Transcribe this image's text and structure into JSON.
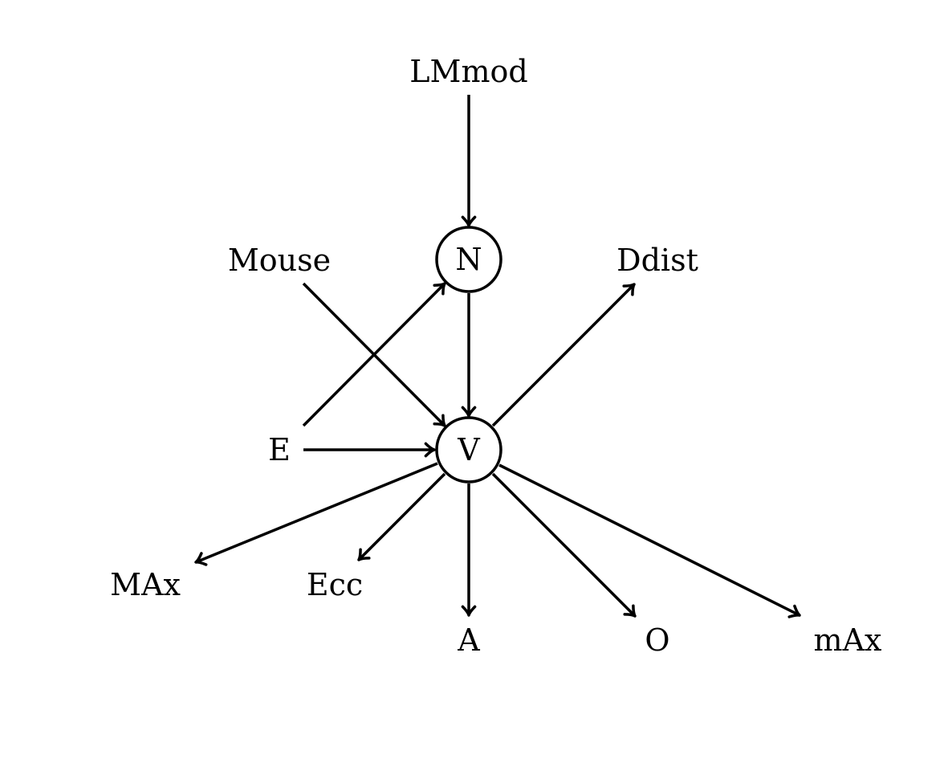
{
  "diagram": {
    "type": "directed-graph",
    "nodes": [
      {
        "id": "LMmod",
        "label": "LMmod",
        "circled": false
      },
      {
        "id": "N",
        "label": "N",
        "circled": true
      },
      {
        "id": "Mouse",
        "label": "Mouse",
        "circled": false
      },
      {
        "id": "Ddist",
        "label": "Ddist",
        "circled": false
      },
      {
        "id": "E",
        "label": "E",
        "circled": false
      },
      {
        "id": "V",
        "label": "V",
        "circled": true
      },
      {
        "id": "MAx",
        "label": "MAx",
        "circled": false
      },
      {
        "id": "Ecc",
        "label": "Ecc",
        "circled": false
      },
      {
        "id": "A",
        "label": "A",
        "circled": false
      },
      {
        "id": "O",
        "label": "O",
        "circled": false
      },
      {
        "id": "mAx",
        "label": "mAx",
        "circled": false
      }
    ],
    "edges": [
      {
        "from": "LMmod",
        "to": "N"
      },
      {
        "from": "N",
        "to": "V"
      },
      {
        "from": "Mouse",
        "to": "V"
      },
      {
        "from": "E",
        "to": "N"
      },
      {
        "from": "E",
        "to": "V"
      },
      {
        "from": "V",
        "to": "Ddist"
      },
      {
        "from": "V",
        "to": "MAx"
      },
      {
        "from": "V",
        "to": "Ecc"
      },
      {
        "from": "V",
        "to": "A"
      },
      {
        "from": "V",
        "to": "O"
      },
      {
        "from": "V",
        "to": "mAx"
      }
    ]
  }
}
